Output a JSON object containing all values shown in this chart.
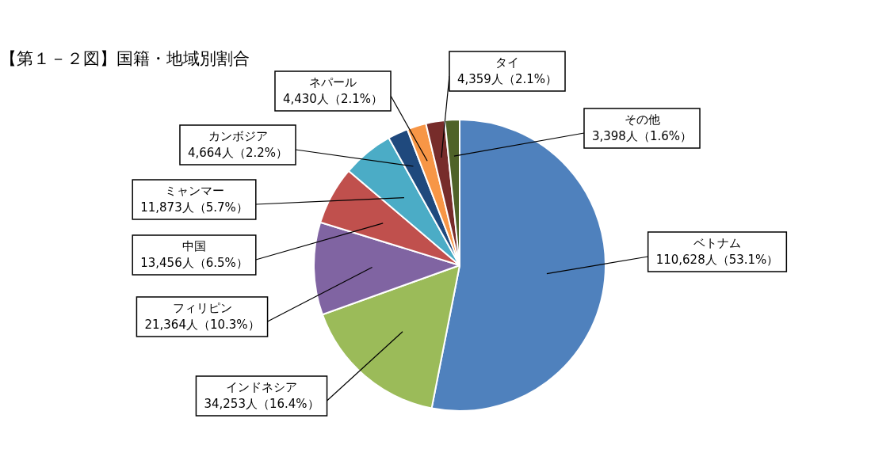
{
  "chart_data": {
    "type": "pie",
    "title": "【第１－２図】国籍・地域別割合",
    "categories": [
      "ベトナム",
      "インドネシア",
      "フィリピン",
      "中国",
      "ミャンマー",
      "カンボジア",
      "ネパール",
      "タイ",
      "その他"
    ],
    "values": [
      110628,
      34253,
      21364,
      13456,
      11873,
      4664,
      4430,
      4359,
      3398
    ],
    "colors": [
      "#4f81bd",
      "#9bbb59",
      "#8064a2",
      "#c0504d",
      "#4bacc6",
      "#1f497d",
      "#f79646",
      "#772c2a",
      "#4f6228"
    ],
    "value_labels": [
      "110,628人（53.1%）",
      "34,253人（16.4%）",
      "21,364人（10.3%）",
      "13,456人（6.5%）",
      "11,873人（5.7%）",
      "4,664人（2.2%）",
      "4,430人（2.1%）",
      "4,359人（2.1%）",
      "3,398人（1.6%）"
    ],
    "legend": false
  }
}
